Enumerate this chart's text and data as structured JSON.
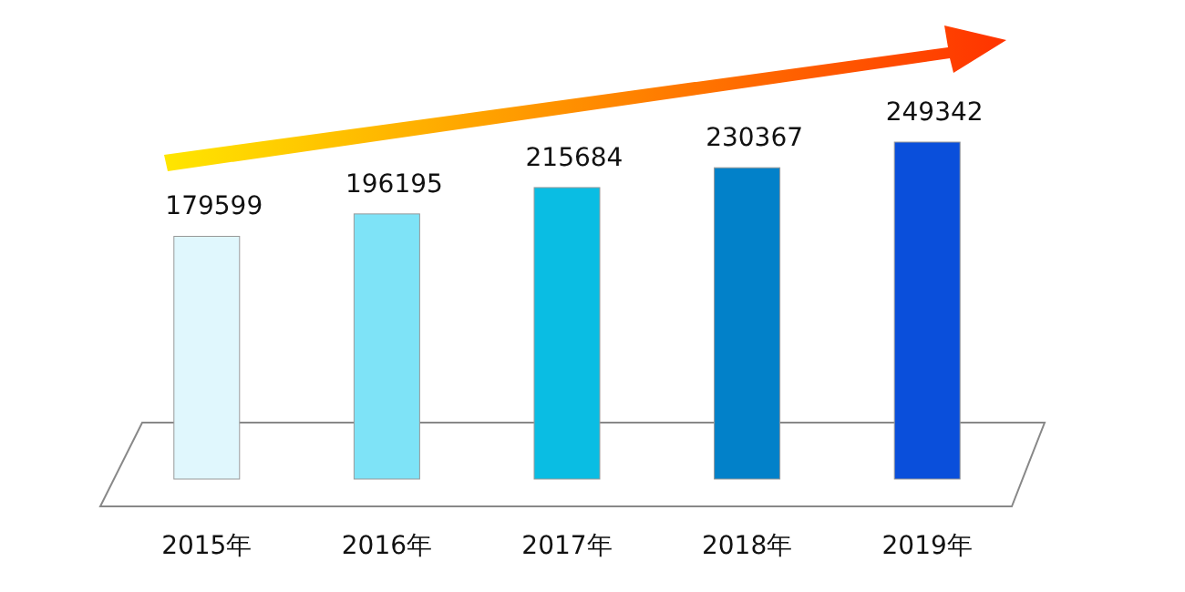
{
  "chart_data": {
    "type": "bar",
    "categories": [
      "2015年",
      "2016年",
      "2017年",
      "2018年",
      "2019年"
    ],
    "values": [
      179599,
      196195,
      215684,
      230367,
      249342
    ],
    "colors": [
      "#e0f7fd",
      "#7ee3f7",
      "#0abde3",
      "#0281c9",
      "#0a4fdb"
    ],
    "data_labels": true
  }
}
